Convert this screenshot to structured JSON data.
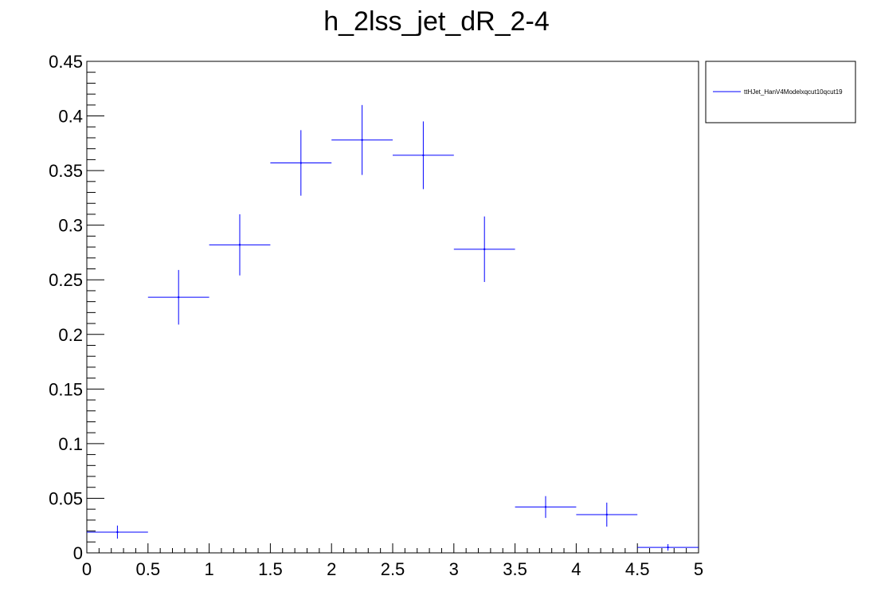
{
  "chart_data": {
    "type": "scatter",
    "title": "h_2lss_jet_dR_2-4",
    "xlabel": "",
    "ylabel": "",
    "xlim": [
      0,
      5
    ],
    "ylim": [
      0,
      0.45
    ],
    "x_ticks": [
      "0",
      "0.5",
      "1",
      "1.5",
      "2",
      "2.5",
      "3",
      "3.5",
      "4",
      "4.5",
      "5"
    ],
    "y_ticks": [
      "0",
      "0.05",
      "0.1",
      "0.15",
      "0.2",
      "0.25",
      "0.3",
      "0.35",
      "0.4",
      "0.45"
    ],
    "grid": false,
    "legend_position": "top-right, outside plot",
    "series": [
      {
        "name": "ttHJet_HanV4Modelxqcut10qcut19",
        "color": "#0000ff",
        "points": [
          {
            "x": 0.25,
            "xerr": 0.25,
            "y": 0.019,
            "yerr": 0.006
          },
          {
            "x": 0.75,
            "xerr": 0.25,
            "y": 0.234,
            "yerr": 0.025
          },
          {
            "x": 1.25,
            "xerr": 0.25,
            "y": 0.282,
            "yerr": 0.028
          },
          {
            "x": 1.75,
            "xerr": 0.25,
            "y": 0.357,
            "yerr": 0.03
          },
          {
            "x": 2.25,
            "xerr": 0.25,
            "y": 0.378,
            "yerr": 0.032
          },
          {
            "x": 2.75,
            "xerr": 0.25,
            "y": 0.364,
            "yerr": 0.031
          },
          {
            "x": 3.25,
            "xerr": 0.25,
            "y": 0.278,
            "yerr": 0.03
          },
          {
            "x": 3.75,
            "xerr": 0.25,
            "y": 0.042,
            "yerr": 0.01
          },
          {
            "x": 4.25,
            "xerr": 0.25,
            "y": 0.035,
            "yerr": 0.011
          },
          {
            "x": 4.75,
            "xerr": 0.25,
            "y": 0.005,
            "yerr": 0.003
          }
        ]
      }
    ]
  }
}
